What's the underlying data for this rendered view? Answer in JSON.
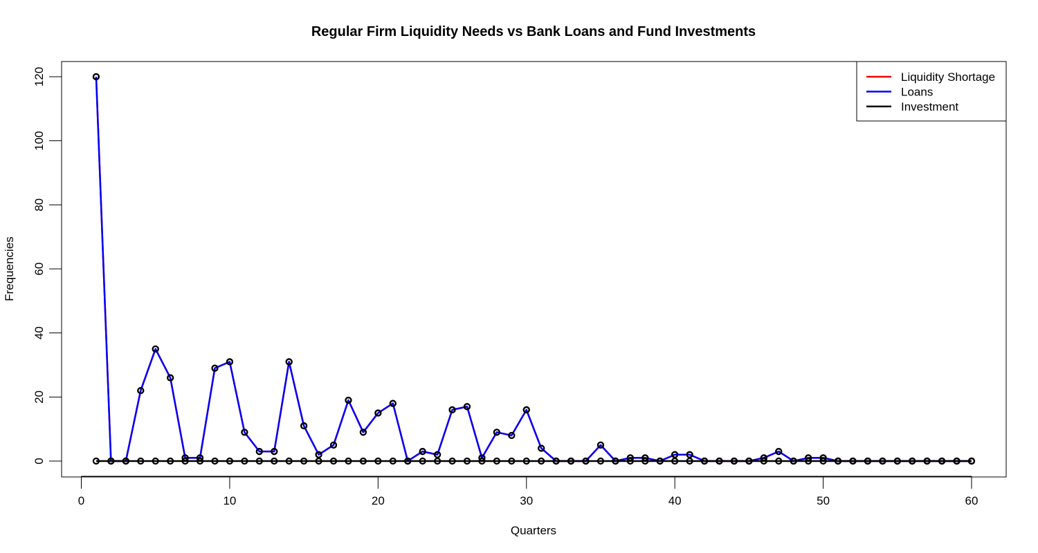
{
  "chart_data": {
    "type": "line",
    "title": "Regular Firm Liquidity Needs vs Bank Loans and Fund Investments",
    "xlabel": "Quarters",
    "ylabel": "Frequencies",
    "xlim": [
      0,
      60
    ],
    "ylim": [
      0,
      120
    ],
    "x_ticks": [
      0,
      10,
      20,
      30,
      40,
      50,
      60
    ],
    "y_ticks": [
      0,
      20,
      40,
      60,
      80,
      100,
      120
    ],
    "grid": false,
    "legend_position": "top-right",
    "x": [
      1,
      2,
      3,
      4,
      5,
      6,
      7,
      8,
      9,
      10,
      11,
      12,
      13,
      14,
      15,
      16,
      17,
      18,
      19,
      20,
      21,
      22,
      23,
      24,
      25,
      26,
      27,
      28,
      29,
      30,
      31,
      32,
      33,
      34,
      35,
      36,
      37,
      38,
      39,
      40,
      41,
      42,
      43,
      44,
      45,
      46,
      47,
      48,
      49,
      50,
      51,
      52,
      53,
      54,
      55,
      56,
      57,
      58,
      59,
      60
    ],
    "series": [
      {
        "name": "Liquidity Shortage",
        "color": "#ff0000",
        "values": [
          120,
          0,
          0,
          22,
          35,
          26,
          1,
          1,
          29,
          31,
          9,
          3,
          3,
          31,
          11,
          2,
          5,
          19,
          9,
          15,
          18,
          0,
          3,
          2,
          16,
          17,
          1,
          9,
          8,
          16,
          4,
          0,
          0,
          0,
          5,
          0,
          1,
          1,
          0,
          2,
          2,
          0,
          0,
          0,
          0,
          1,
          3,
          0,
          1,
          1,
          0,
          0,
          0,
          0,
          0,
          0,
          0,
          0,
          0,
          0
        ]
      },
      {
        "name": "Loans",
        "color": "#0000ff",
        "values": [
          120,
          0,
          0,
          22,
          35,
          26,
          1,
          1,
          29,
          31,
          9,
          3,
          3,
          31,
          11,
          2,
          5,
          19,
          9,
          15,
          18,
          0,
          3,
          2,
          16,
          17,
          1,
          9,
          8,
          16,
          4,
          0,
          0,
          0,
          5,
          0,
          1,
          1,
          0,
          2,
          2,
          0,
          0,
          0,
          0,
          1,
          3,
          0,
          1,
          1,
          0,
          0,
          0,
          0,
          0,
          0,
          0,
          0,
          0,
          0
        ]
      },
      {
        "name": "Investment",
        "color": "#000000",
        "values": [
          0,
          0,
          0,
          0,
          0,
          0,
          0,
          0,
          0,
          0,
          0,
          0,
          0,
          0,
          0,
          0,
          0,
          0,
          0,
          0,
          0,
          0,
          0,
          0,
          0,
          0,
          0,
          0,
          0,
          0,
          0,
          0,
          0,
          0,
          0,
          0,
          0,
          0,
          0,
          0,
          0,
          0,
          0,
          0,
          0,
          0,
          0,
          0,
          0,
          0,
          0,
          0,
          0,
          0,
          0,
          0,
          0,
          0,
          0,
          0
        ]
      }
    ]
  }
}
